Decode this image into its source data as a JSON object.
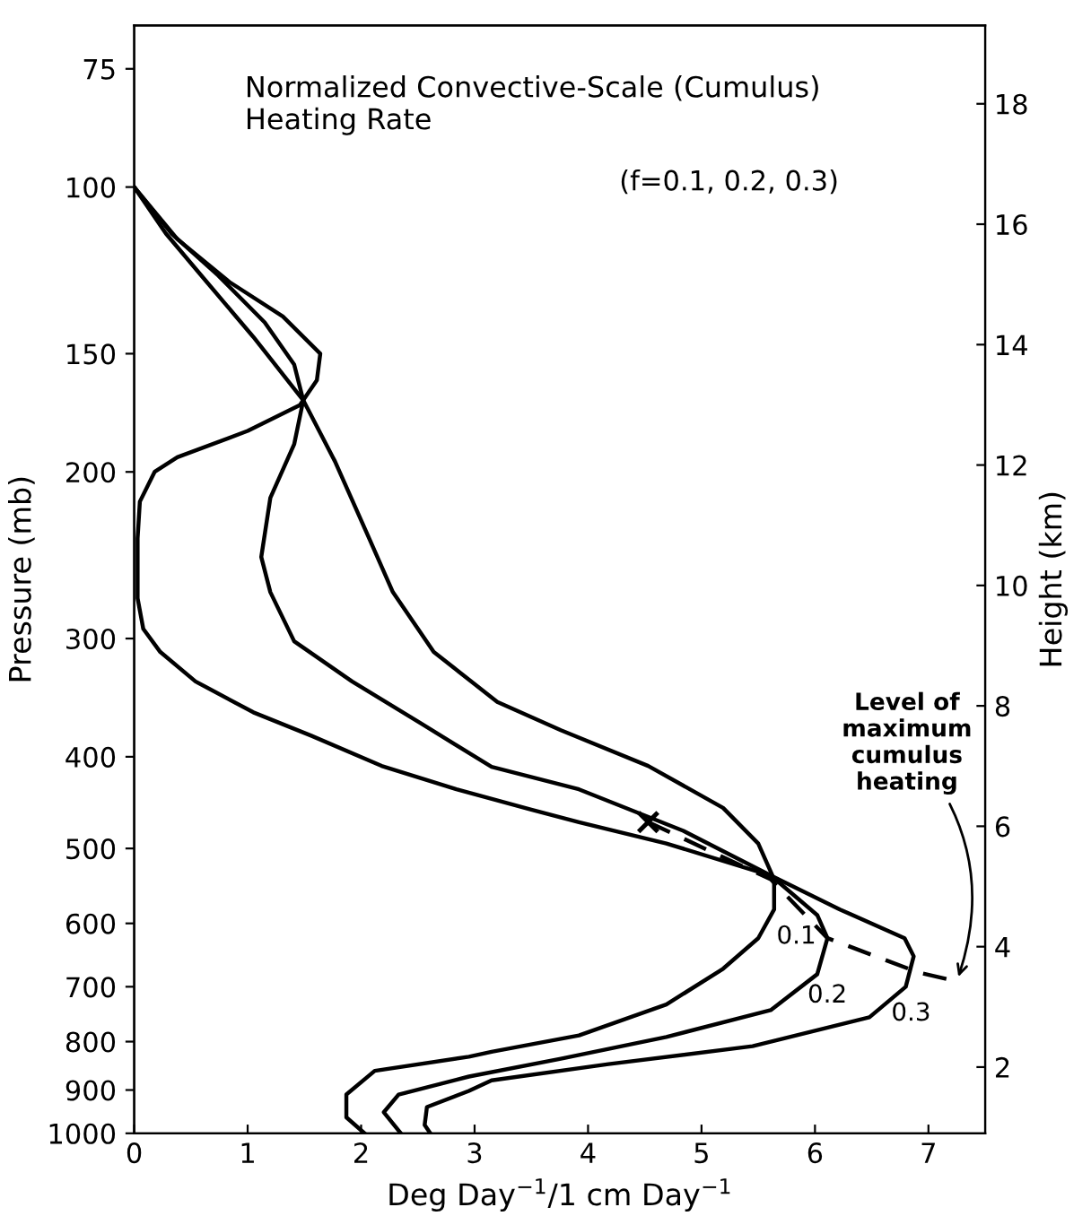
{
  "chart_data": {
    "type": "line",
    "title": "Normalized Convective-Scale (Cumulus)\nHeating Rate",
    "xlabel": "Deg Day$^{−1}$/1 cm Day$^{−1}$",
    "ylabel": "Pressure (mb)",
    "y2label": "Height (km)",
    "log": "y",
    "xlim": [
      0,
      7.5
    ],
    "xticks": [
      0,
      1,
      2,
      3,
      4,
      5,
      6,
      7
    ],
    "ylim": [
      1000,
      67.5
    ],
    "yticks": [
      75,
      100,
      150,
      200,
      300,
      400,
      500,
      600,
      700,
      800,
      900,
      1000
    ],
    "y2lim": [
      0.9,
      19.3
    ],
    "y2ticks": [
      2,
      4,
      6,
      8,
      10,
      12,
      14,
      16,
      18
    ],
    "grid": false,
    "legend": false,
    "line_style": "solid",
    "marker": "none",
    "series": [
      {
        "name": "0.1",
        "color": "#000000",
        "x": [
          0,
          0.28,
          0.64,
          1.05,
          1.49,
          1.77,
          2.07,
          2.28,
          2.64,
          3.2,
          3.76,
          4.53,
          5.19,
          5.5,
          5.64,
          5.64,
          5.5,
          5.19,
          4.69,
          3.92,
          3.15,
          2.95,
          2.12,
          1.87,
          1.87,
          2.03
        ],
        "values": [
          100,
          112,
          126,
          144,
          168,
          195,
          235,
          268,
          310,
          350,
          375,
          409,
          453,
          494,
          539,
          580,
          622,
          670,
          731,
          788,
          820,
          830,
          859,
          910,
          962,
          1000
        ]
      },
      {
        "name": "0.2",
        "color": "#000000",
        "x": [
          0,
          0.33,
          0.74,
          1.15,
          1.41,
          1.49,
          1.41,
          1.2,
          1.12,
          1.2,
          1.41,
          1.92,
          2.53,
          3.15,
          3.92,
          4.84,
          5.61,
          6.02,
          6.11,
          6.02,
          5.61,
          4.69,
          3.76,
          2.95,
          2.33,
          2.2,
          2.35
        ],
        "values": [
          100,
          112,
          124,
          139,
          154,
          168,
          187,
          213,
          246,
          268,
          302,
          333,
          369,
          410,
          433,
          479,
          534,
          588,
          622,
          679,
          741,
          791,
          834,
          871,
          910,
          950,
          1000
        ]
      },
      {
        "name": "0.3",
        "color": "#000000",
        "x": [
          0,
          0.38,
          0.84,
          1.31,
          1.64,
          1.61,
          1.46,
          1.0,
          0.38,
          0.18,
          0.05,
          0.03,
          0.03,
          0.08,
          0.23,
          0.54,
          1.05,
          1.56,
          2.18,
          2.84,
          3.5,
          3.92,
          4.69,
          5.61,
          6.22,
          6.79,
          6.87,
          6.8,
          6.48,
          5.45,
          4.18,
          3.15,
          2.95,
          2.58,
          2.56,
          2.61
        ],
        "values": [
          100,
          113.5,
          126,
          137,
          150,
          160,
          170,
          181,
          193,
          200,
          215,
          235,
          272,
          293,
          310,
          333,
          359,
          380,
          409,
          433,
          455,
          469,
          494,
          534,
          580,
          622,
          650,
          700,
          754,
          809,
          845,
          879,
          902,
          938,
          980,
          1000
        ]
      },
      {
        "color": "#000000",
        "line_style": "dashed",
        "x": [
          4.53,
          5.61,
          6.11,
          6.91,
          7.25
        ],
        "values": [
          469,
          539,
          622,
          676,
          691
        ]
      },
      {
        "type": "scatter",
        "marker": "cross",
        "color": "#000000",
        "x": [
          4.53
        ],
        "values": [
          469
        ]
      }
    ],
    "annotations": [
      {
        "text": "(f=0.1, 0.2, 0.3)"
      },
      {
        "text": "Level of\nmaximum\ncumulus\nheating",
        "x": 7.25,
        "y": 691
      }
    ]
  }
}
